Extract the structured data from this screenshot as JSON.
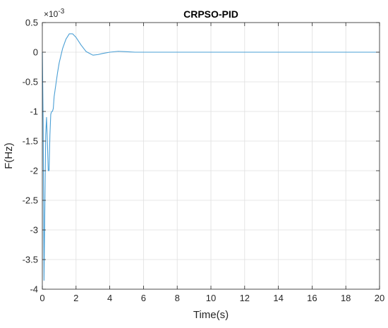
{
  "chart_data": {
    "type": "line",
    "title": "CRPSO-PID",
    "xlabel": "Time(s)",
    "ylabel": "F(Hz)",
    "y_multiplier_label": "×10",
    "y_multiplier_exponent": "-3",
    "xlim": [
      0,
      20
    ],
    "ylim": [
      -4,
      0.5
    ],
    "grid": true,
    "x_ticks": [
      0,
      2,
      4,
      6,
      8,
      10,
      12,
      14,
      16,
      18,
      20
    ],
    "x_tick_labels": [
      "0",
      "2",
      "4",
      "6",
      "8",
      "10",
      "12",
      "14",
      "16",
      "18",
      "20"
    ],
    "y_ticks": [
      0.5,
      0,
      -0.5,
      -1,
      -1.5,
      -2,
      -2.5,
      -3,
      -3.5,
      -4
    ],
    "y_tick_labels": [
      "0.5",
      "0",
      "-0.5",
      "-1",
      "-1.5",
      "-2",
      "-2.5",
      "-3",
      "-3.5",
      "-4"
    ],
    "series": [
      {
        "color": "#4a9fd5",
        "x": [
          0,
          0.05,
          0.1,
          0.15,
          0.2,
          0.25,
          0.3,
          0.35,
          0.4,
          0.45,
          0.5,
          0.55,
          0.6,
          0.65,
          0.7,
          0.8,
          0.9,
          1.0,
          1.2,
          1.4,
          1.6,
          1.8,
          2.0,
          2.3,
          2.6,
          3.0,
          3.3,
          3.6,
          4.0,
          4.5,
          5.0,
          5.5,
          6,
          7,
          8,
          10,
          12,
          14,
          16,
          18,
          20
        ],
        "y": [
          0,
          -1.2,
          -3.85,
          -2.6,
          -1.4,
          -1.1,
          -1.5,
          -2.0,
          -2.0,
          -1.4,
          -1.05,
          -1.0,
          -1.0,
          -0.95,
          -0.75,
          -0.55,
          -0.35,
          -0.18,
          0.06,
          0.22,
          0.31,
          0.31,
          0.25,
          0.12,
          0.01,
          -0.05,
          -0.04,
          -0.02,
          0.0,
          0.015,
          0.008,
          0.0,
          0.0,
          0.0,
          0.0,
          0.0,
          0.0,
          0.0,
          0.0,
          0.0,
          0.0
        ]
      }
    ]
  }
}
